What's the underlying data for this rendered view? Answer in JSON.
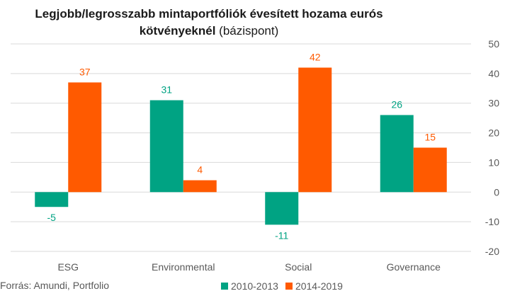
{
  "title_bold": "Legjobb/legrosszabb mintaportfóliók évesített hozama eurós kötvényeknél",
  "title_normal": " (bázispont)",
  "source": "Forrás: Amundi, Portfolio",
  "colors": {
    "series1": "#00a383",
    "series2": "#ff5a00",
    "grid": "#d9d9d9",
    "text": "#595959"
  },
  "chart_data": {
    "type": "bar",
    "title": "Legjobb/legrosszabb mintaportfóliók évesített hozama eurós kötvényeknél (bázispont)",
    "categories": [
      "ESG",
      "Environmental",
      "Social",
      "Governance"
    ],
    "series": [
      {
        "name": "2010-2013",
        "values": [
          -5,
          31,
          -11,
          26
        ]
      },
      {
        "name": "2014-2019",
        "values": [
          37,
          4,
          42,
          15
        ]
      }
    ],
    "yticks": [
      50,
      40,
      30,
      20,
      10,
      0,
      -10,
      -20
    ],
    "ylim": [
      -20,
      50
    ],
    "yaxis_position": "right",
    "grid": true,
    "legend": "bottom"
  }
}
